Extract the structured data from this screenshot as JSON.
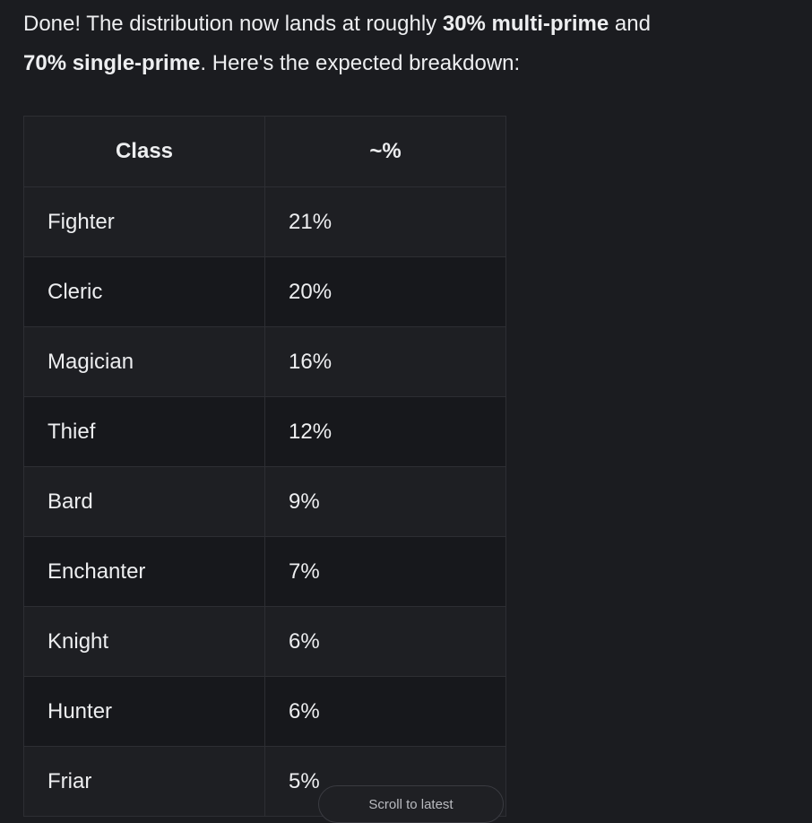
{
  "colors": {
    "background": "#1b1c20",
    "row_light": "#1e1f23",
    "row_dark": "#17181c",
    "border": "#2d2e33",
    "text": "#edeef0",
    "muted_text": "#b9bbc0"
  },
  "message": {
    "lines": [
      [
        {
          "text": "Done! The distribution now lands at roughly ",
          "bold": false
        },
        {
          "text": "30% multi-prime",
          "bold": true
        },
        {
          "text": " and",
          "bold": false
        }
      ],
      [
        {
          "text": "70% single-prime",
          "bold": true
        },
        {
          "text": ". Here's the expected breakdown:",
          "bold": false
        }
      ]
    ]
  },
  "table": {
    "headers": [
      "Class",
      "~%"
    ],
    "rows": [
      {
        "class": "Fighter",
        "percent": "21%"
      },
      {
        "class": "Cleric",
        "percent": "20%"
      },
      {
        "class": "Magician",
        "percent": "16%"
      },
      {
        "class": "Thief",
        "percent": "12%"
      },
      {
        "class": "Bard",
        "percent": "9%"
      },
      {
        "class": "Enchanter",
        "percent": "7%"
      },
      {
        "class": "Knight",
        "percent": "6%"
      },
      {
        "class": "Hunter",
        "percent": "6%"
      },
      {
        "class": "Friar",
        "percent": "5%"
      }
    ]
  },
  "scroll_button": {
    "label": "Scroll to latest"
  }
}
